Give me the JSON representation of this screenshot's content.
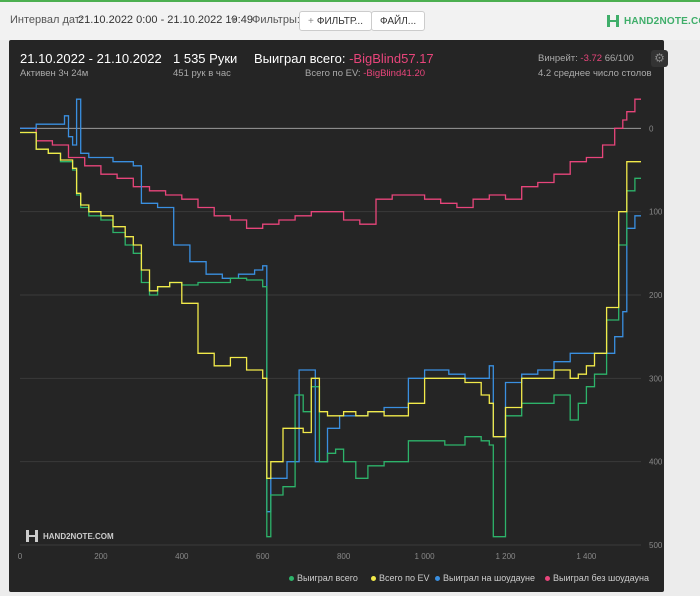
{
  "toolbar": {
    "interval_label": "Интервал дат:",
    "date_range": "21.10.2022 0:00 - 21.10.2022 19:49",
    "filters_label": "Фильтры:",
    "filter_button": "ФИЛЬТР...",
    "file_button": "ФАЙЛ...",
    "logo_text": "HAND2NOTE.COM"
  },
  "summary": {
    "dates": "21.10.2022 - 21.10.2022",
    "active": "Активен 3ч 24м",
    "hands": "1 535 Руки",
    "hands_per_hour": "451 рук в час",
    "won_label": "Выиграл всего:",
    "won_value": "-BigBlind57.17",
    "ev_label": "Всего по EV:",
    "ev_value": "-BigBlind41.20",
    "winrate_label": "Винрейт:",
    "winrate_value": "-3.72",
    "winrate_base": "66/100",
    "tables": "4.2 среднее число столов"
  },
  "watermark": "HAND2NOTE.COM",
  "colors": {
    "green": "#2db36a",
    "yellow": "#f2ea4a",
    "blue": "#3a8fe0",
    "pink": "#e8457b"
  },
  "chart_data": {
    "type": "line",
    "title": "",
    "xlabel": "",
    "ylabel": "",
    "xlim": [
      0,
      1535
    ],
    "ylim": [
      -500,
      40
    ],
    "y_display": "inverted labels (axis shows loss magnitude)",
    "x_ticks": [
      {
        "v": 0,
        "label": "0"
      },
      {
        "v": 200,
        "label": "200"
      },
      {
        "v": 400,
        "label": "400"
      },
      {
        "v": 600,
        "label": "600"
      },
      {
        "v": 800,
        "label": "800"
      },
      {
        "v": 1000,
        "label": "1 000"
      },
      {
        "v": 1200,
        "label": "1 200"
      },
      {
        "v": 1400,
        "label": "1 400"
      }
    ],
    "y_ticks": [
      {
        "v": 0,
        "label": "0"
      },
      {
        "v": -100,
        "label": "100"
      },
      {
        "v": -200,
        "label": "200"
      },
      {
        "v": -300,
        "label": "300"
      },
      {
        "v": -400,
        "label": "400"
      },
      {
        "v": -500,
        "label": "500"
      }
    ],
    "grid": true,
    "legend_position": "bottom-right",
    "series": [
      {
        "name": "Выиграл всего",
        "color": "#2db36a",
        "x": [
          0,
          40,
          70,
          100,
          130,
          140,
          150,
          170,
          200,
          230,
          260,
          280,
          300,
          320,
          340,
          370,
          400,
          440,
          480,
          520,
          560,
          600,
          610,
          620,
          650,
          680,
          700,
          720,
          740,
          760,
          780,
          800,
          830,
          860,
          900,
          960,
          1000,
          1050,
          1100,
          1140,
          1160,
          1170,
          1200,
          1240,
          1280,
          1320,
          1360,
          1380,
          1400,
          1420,
          1450,
          1480,
          1500,
          1520,
          1535
        ],
        "y": [
          -5,
          -25,
          -30,
          -40,
          -50,
          -80,
          -95,
          -105,
          -110,
          -125,
          -140,
          -150,
          -185,
          -200,
          -190,
          -185,
          -188,
          -185,
          -185,
          -180,
          -182,
          -190,
          -490,
          -440,
          -430,
          -320,
          -340,
          -310,
          -400,
          -390,
          -385,
          -400,
          -420,
          -405,
          -400,
          -375,
          -375,
          -380,
          -370,
          -375,
          -380,
          -490,
          -345,
          -330,
          -330,
          -320,
          -350,
          -330,
          -310,
          -295,
          -230,
          -140,
          -75,
          -60,
          -60
        ]
      },
      {
        "name": "Всего по EV",
        "color": "#f2ea4a",
        "x": [
          0,
          40,
          70,
          100,
          130,
          140,
          150,
          170,
          200,
          230,
          260,
          280,
          300,
          320,
          340,
          370,
          400,
          440,
          480,
          520,
          560,
          600,
          610,
          620,
          650,
          680,
          700,
          720,
          740,
          760,
          780,
          800,
          830,
          860,
          900,
          960,
          1000,
          1050,
          1100,
          1140,
          1160,
          1170,
          1200,
          1240,
          1280,
          1320,
          1360,
          1380,
          1400,
          1420,
          1450,
          1480,
          1500,
          1520,
          1535
        ],
        "y": [
          -5,
          -25,
          -30,
          -38,
          -48,
          -78,
          -92,
          -100,
          -105,
          -118,
          -130,
          -140,
          -170,
          -195,
          -190,
          -185,
          -210,
          -270,
          -285,
          -275,
          -290,
          -300,
          -420,
          -400,
          -360,
          -360,
          -365,
          -300,
          -340,
          -345,
          -345,
          -340,
          -345,
          -340,
          -345,
          -330,
          -300,
          -300,
          -305,
          -320,
          -330,
          -370,
          -335,
          -300,
          -300,
          -290,
          -300,
          -295,
          -285,
          -270,
          -215,
          -100,
          -40,
          -40,
          -40
        ]
      },
      {
        "name": "Выиграл на шоудауне",
        "color": "#3a8fe0",
        "x": [
          0,
          40,
          80,
          110,
          120,
          130,
          140,
          150,
          170,
          200,
          230,
          260,
          280,
          300,
          340,
          380,
          420,
          460,
          500,
          540,
          580,
          600,
          610,
          620,
          660,
          690,
          700,
          730,
          760,
          790,
          820,
          860,
          900,
          960,
          1000,
          1060,
          1100,
          1160,
          1170,
          1200,
          1240,
          1280,
          1320,
          1360,
          1400,
          1440,
          1470,
          1490,
          1500,
          1520,
          1535
        ],
        "y": [
          0,
          5,
          5,
          15,
          -10,
          -20,
          35,
          -30,
          -35,
          -35,
          -40,
          -40,
          -45,
          -90,
          -95,
          -140,
          -160,
          -175,
          -180,
          -175,
          -170,
          -165,
          -460,
          -420,
          -400,
          -290,
          -290,
          -400,
          -360,
          -345,
          -345,
          -340,
          -335,
          -300,
          -290,
          -295,
          -300,
          -285,
          -370,
          -305,
          -295,
          -290,
          -280,
          -270,
          -270,
          -270,
          -250,
          -220,
          -120,
          -105,
          -105
        ]
      },
      {
        "name": "Выиграл без шоудауна",
        "color": "#e8457b",
        "x": [
          0,
          40,
          80,
          120,
          160,
          200,
          240,
          280,
          320,
          360,
          400,
          440,
          480,
          520,
          560,
          600,
          640,
          680,
          720,
          760,
          800,
          840,
          880,
          920,
          960,
          1000,
          1040,
          1080,
          1120,
          1160,
          1200,
          1240,
          1280,
          1320,
          1360,
          1400,
          1440,
          1470,
          1490,
          1500,
          1520,
          1535
        ],
        "y": [
          0,
          -15,
          -20,
          -35,
          -45,
          -55,
          -60,
          -70,
          -75,
          -80,
          -85,
          -95,
          -105,
          -110,
          -120,
          -115,
          -110,
          -105,
          -100,
          -100,
          -110,
          -115,
          -85,
          -80,
          -80,
          -85,
          -90,
          -95,
          -85,
          -80,
          -85,
          -70,
          -65,
          -55,
          -40,
          -35,
          -20,
          0,
          10,
          20,
          35,
          35
        ]
      }
    ]
  },
  "legend": [
    {
      "label": "Выиграл всего",
      "color": "#2db36a"
    },
    {
      "label": "Всего по EV",
      "color": "#f2ea4a"
    },
    {
      "label": "Выиграл на шоудауне",
      "color": "#3a8fe0"
    },
    {
      "label": "Выиграл без шоудауна",
      "color": "#e8457b"
    }
  ]
}
